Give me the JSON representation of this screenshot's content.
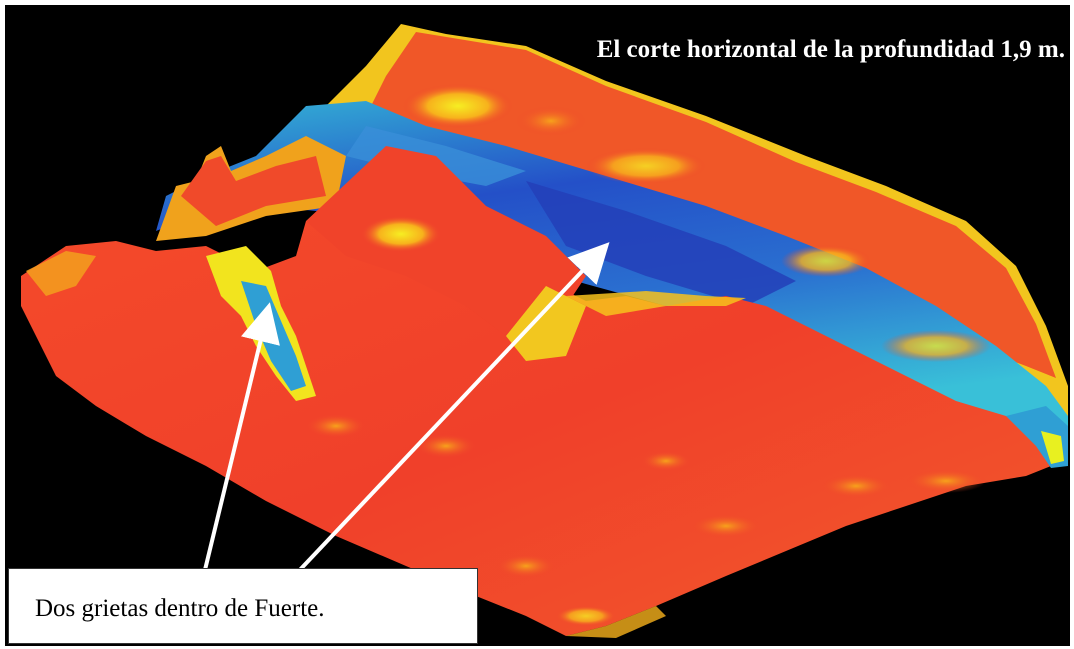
{
  "figure": {
    "title": "El corte horizontal de la profundidad 1,9 m.",
    "callout_text": "Dos grietas  dentro de Fuerte.",
    "colors": {
      "background": "#000000",
      "high": "#f0432a",
      "mid_high": "#f7a21b",
      "mid": "#f2f21e",
      "mid_low": "#34b6d6",
      "low": "#2450c8",
      "arrow": "#ffffff",
      "callout_bg": "#ffffff"
    }
  }
}
